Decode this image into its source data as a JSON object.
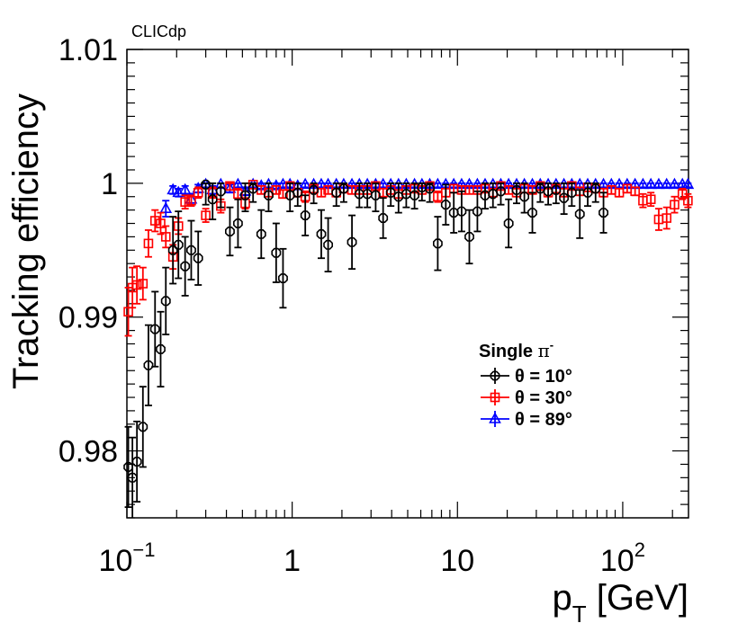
{
  "label": "CLICdp",
  "chart_data": {
    "type": "scatter",
    "xlabel_main": "p",
    "xlabel_sub": "T",
    "xlabel_unit": " [GeV]",
    "ylabel": "Tracking efficiency",
    "x_scale": "log",
    "xlim": [
      0.1,
      250
    ],
    "ylim": [
      0.975,
      1.01
    ],
    "x_ticks": [
      {
        "value": 0.1,
        "base": "10",
        "exp": "−1"
      },
      {
        "value": 1,
        "base": "1",
        "exp": ""
      },
      {
        "value": 10,
        "base": "10",
        "exp": ""
      },
      {
        "value": 100,
        "base": "10",
        "exp": "2"
      }
    ],
    "y_ticks": [
      {
        "value": 0.98,
        "label": "0.98"
      },
      {
        "value": 0.99,
        "label": "0.99"
      },
      {
        "value": 1.0,
        "label": "1"
      },
      {
        "value": 1.01,
        "label": "1.01"
      }
    ],
    "legend": {
      "title_text": "Single ",
      "title_symbol": "π",
      "title_sup": "-",
      "position": "center-right"
    },
    "series": [
      {
        "name": "θ = 10°",
        "color": "#000000",
        "marker": "circle",
        "points": [
          [
            0.102,
            0.9788,
            0.003
          ],
          [
            0.108,
            0.978,
            0.003
          ],
          [
            0.115,
            0.9792,
            0.003
          ],
          [
            0.125,
            0.9818,
            0.003
          ],
          [
            0.135,
            0.9864,
            0.003
          ],
          [
            0.148,
            0.9891,
            0.0028
          ],
          [
            0.16,
            0.9876,
            0.0028
          ],
          [
            0.172,
            0.9912,
            0.0025
          ],
          [
            0.19,
            0.995,
            0.0025
          ],
          [
            0.205,
            0.9954,
            0.0025
          ],
          [
            0.225,
            0.9938,
            0.0022
          ],
          [
            0.245,
            0.995,
            0.0022
          ],
          [
            0.27,
            0.9944,
            0.002
          ],
          [
            0.3,
            0.9999,
            0.0015
          ],
          [
            0.33,
            0.9988,
            0.0015
          ],
          [
            0.37,
            0.9994,
            0.0012
          ],
          [
            0.42,
            0.9964,
            0.0018
          ],
          [
            0.47,
            0.997,
            0.0018
          ],
          [
            0.52,
            0.9991,
            0.0012
          ],
          [
            0.58,
            0.9996,
            0.001
          ],
          [
            0.65,
            0.9962,
            0.0018
          ],
          [
            0.72,
            0.9991,
            0.0012
          ],
          [
            0.8,
            0.9948,
            0.0022
          ],
          [
            0.88,
            0.9929,
            0.0022
          ],
          [
            0.97,
            0.9991,
            0.0012
          ],
          [
            1.08,
            0.9993,
            0.001
          ],
          [
            1.2,
            0.9976,
            0.0015
          ],
          [
            1.35,
            0.9995,
            0.001
          ],
          [
            1.5,
            0.9962,
            0.0018
          ],
          [
            1.65,
            0.9954,
            0.002
          ],
          [
            1.85,
            0.9993,
            0.001
          ],
          [
            2.05,
            0.9996,
            0.001
          ],
          [
            2.3,
            0.9956,
            0.002
          ],
          [
            2.55,
            0.9992,
            0.001
          ],
          [
            2.85,
            0.9992,
            0.001
          ],
          [
            3.2,
            0.9991,
            0.0012
          ],
          [
            3.55,
            0.9974,
            0.0015
          ],
          [
            3.95,
            0.9993,
            0.001
          ],
          [
            4.4,
            0.999,
            0.0012
          ],
          [
            4.9,
            0.9992,
            0.001
          ],
          [
            5.5,
            0.9991,
            0.001
          ],
          [
            6.1,
            0.9997,
            0.001
          ],
          [
            6.8,
            0.9996,
            0.001
          ],
          [
            7.6,
            0.9955,
            0.002
          ],
          [
            8.5,
            0.9984,
            0.0015
          ],
          [
            9.5,
            0.9978,
            0.0015
          ],
          [
            10.6,
            0.9979,
            0.0015
          ],
          [
            11.8,
            0.996,
            0.002
          ],
          [
            13.2,
            0.9979,
            0.0015
          ],
          [
            14.7,
            0.9991,
            0.001
          ],
          [
            16.4,
            0.9992,
            0.001
          ],
          [
            18.3,
            0.9994,
            0.001
          ],
          [
            20.4,
            0.997,
            0.0018
          ],
          [
            22.8,
            0.9995,
            0.001
          ],
          [
            25.4,
            0.999,
            0.0012
          ],
          [
            28.4,
            0.9978,
            0.0015
          ],
          [
            31.7,
            0.9996,
            0.001
          ],
          [
            35.4,
            0.9994,
            0.001
          ],
          [
            39.5,
            0.9995,
            0.001
          ],
          [
            44.1,
            0.9989,
            0.0012
          ],
          [
            49.2,
            0.9993,
            0.001
          ],
          [
            55,
            0.9977,
            0.0018
          ],
          [
            61.4,
            0.9993,
            0.001
          ],
          [
            68.5,
            0.9996,
            0.001
          ],
          [
            76.5,
            0.9978,
            0.0015
          ]
        ]
      },
      {
        "name": "θ = 30°",
        "color": "#ff0000",
        "marker": "square",
        "points": [
          [
            0.102,
            0.9904,
            0.0018
          ],
          [
            0.108,
            0.9922,
            0.0015
          ],
          [
            0.115,
            0.9924,
            0.0014
          ],
          [
            0.125,
            0.9925,
            0.0012
          ],
          [
            0.135,
            0.9955,
            0.001
          ],
          [
            0.148,
            0.9972,
            0.0008
          ],
          [
            0.16,
            0.997,
            0.0008
          ],
          [
            0.172,
            0.996,
            0.0008
          ],
          [
            0.19,
            0.9945,
            0.0009
          ],
          [
            0.205,
            0.9968,
            0.0006
          ],
          [
            0.225,
            0.9986,
            0.0005
          ],
          [
            0.245,
            0.9987,
            0.0004
          ],
          [
            0.27,
            0.9993,
            0.0004
          ],
          [
            0.3,
            0.9976,
            0.0005
          ],
          [
            0.33,
            0.9993,
            0.0004
          ],
          [
            0.37,
            0.9983,
            0.0005
          ],
          [
            0.42,
            0.9998,
            0.0003
          ],
          [
            0.47,
            0.9992,
            0.0004
          ],
          [
            0.52,
            0.9985,
            0.0004
          ],
          [
            0.58,
            0.9999,
            0.0003
          ],
          [
            0.65,
            0.9995,
            0.0003
          ],
          [
            0.72,
            0.9993,
            0.0003
          ],
          [
            0.8,
            0.9995,
            0.0003
          ],
          [
            0.88,
            0.9992,
            0.0003
          ],
          [
            0.97,
            0.9998,
            0.0003
          ],
          [
            1.08,
            0.9993,
            0.0003
          ],
          [
            1.2,
            0.999,
            0.0004
          ],
          [
            1.35,
            0.9996,
            0.0003
          ],
          [
            1.5,
            0.9993,
            0.0003
          ],
          [
            1.65,
            0.9995,
            0.0003
          ],
          [
            1.85,
            0.9993,
            0.0003
          ],
          [
            2.05,
            0.9996,
            0.0003
          ],
          [
            2.3,
            0.9995,
            0.0003
          ],
          [
            2.55,
            0.9995,
            0.0003
          ],
          [
            2.85,
            0.9995,
            0.0003
          ],
          [
            3.2,
            0.9998,
            0.0003
          ],
          [
            3.55,
            0.9993,
            0.0003
          ],
          [
            3.95,
            0.9995,
            0.0003
          ],
          [
            4.4,
            0.9992,
            0.0003
          ],
          [
            4.9,
            0.9995,
            0.0003
          ],
          [
            5.5,
            0.9996,
            0.0003
          ],
          [
            6.1,
            0.9995,
            0.0003
          ],
          [
            6.8,
            0.9998,
            0.0003
          ],
          [
            7.6,
            0.999,
            0.0004
          ],
          [
            8.5,
            0.9993,
            0.0003
          ],
          [
            9.5,
            0.9996,
            0.0003
          ],
          [
            10.6,
            0.9995,
            0.0003
          ],
          [
            11.8,
            0.9995,
            0.0003
          ],
          [
            13.2,
            0.9995,
            0.0003
          ],
          [
            14.7,
            0.9996,
            0.0003
          ],
          [
            16.4,
            0.9993,
            0.0003
          ],
          [
            18.3,
            0.9998,
            0.0003
          ],
          [
            20.4,
            0.9995,
            0.0003
          ],
          [
            22.8,
            0.9993,
            0.0003
          ],
          [
            25.4,
            0.9996,
            0.0003
          ],
          [
            28.4,
            0.9995,
            0.0003
          ],
          [
            31.7,
            0.9998,
            0.0003
          ],
          [
            35.4,
            0.9993,
            0.0003
          ],
          [
            39.5,
            0.9996,
            0.0003
          ],
          [
            44.1,
            0.9993,
            0.0003
          ],
          [
            49.2,
            0.9998,
            0.0003
          ],
          [
            55,
            0.9994,
            0.0003
          ],
          [
            61.4,
            0.9997,
            0.0003
          ],
          [
            68.5,
            0.9996,
            0.0003
          ],
          [
            76.5,
            0.9993,
            0.0003
          ],
          [
            85.4,
            0.9995,
            0.0003
          ],
          [
            95.3,
            0.9993,
            0.0003
          ],
          [
            106.4,
            0.9996,
            0.0003
          ],
          [
            118.8,
            0.9994,
            0.0003
          ],
          [
            132.6,
            0.9987,
            0.0005
          ],
          [
            148,
            0.9988,
            0.0005
          ],
          [
            165.2,
            0.9973,
            0.0008
          ],
          [
            184.4,
            0.9974,
            0.0008
          ],
          [
            205.8,
            0.9984,
            0.0006
          ],
          [
            229.7,
            0.9992,
            0.0004
          ],
          [
            248,
            0.9987,
            0.0005
          ]
        ]
      },
      {
        "name": "θ = 89°",
        "color": "#0000ff",
        "marker": "triangle",
        "points": [
          [
            0.172,
            0.9981,
            0.0006
          ],
          [
            0.19,
            0.9995,
            0.0003
          ],
          [
            0.205,
            0.9993,
            0.0003
          ],
          [
            0.225,
            0.9995,
            0.0003
          ],
          [
            0.245,
            0.9988,
            0.0004
          ],
          [
            0.27,
            0.9996,
            0.0003
          ],
          [
            0.3,
            0.9999,
            0.0002
          ],
          [
            0.33,
            0.9995,
            0.0003
          ],
          [
            0.37,
            0.9999,
            0.0002
          ],
          [
            0.42,
            0.9996,
            0.0003
          ],
          [
            0.47,
            0.9999,
            0.0002
          ],
          [
            0.52,
            0.9994,
            0.0003
          ],
          [
            0.58,
            0.9999,
            0.0002
          ],
          [
            0.65,
            0.9998,
            0.0002
          ],
          [
            0.72,
            0.9999,
            0.0002
          ],
          [
            0.8,
            0.9998,
            0.0002
          ],
          [
            0.88,
            0.9999,
            0.0002
          ],
          [
            0.97,
            0.9999,
            0.0002
          ],
          [
            1.08,
            0.9998,
            0.0002
          ],
          [
            1.2,
            0.9999,
            0.0002
          ],
          [
            1.35,
            0.9999,
            0.0002
          ],
          [
            1.5,
            0.9999,
            0.0002
          ],
          [
            1.65,
            0.9999,
            0.0002
          ],
          [
            1.85,
            0.9999,
            0.0002
          ],
          [
            2.05,
            0.9999,
            0.0002
          ],
          [
            2.3,
            0.9999,
            0.0002
          ],
          [
            2.55,
            0.9999,
            0.0002
          ],
          [
            2.85,
            0.9999,
            0.0002
          ],
          [
            3.2,
            0.9999,
            0.0002
          ],
          [
            3.55,
            0.9999,
            0.0002
          ],
          [
            3.95,
            0.9999,
            0.0002
          ],
          [
            4.4,
            0.9999,
            0.0002
          ],
          [
            4.9,
            0.9999,
            0.0002
          ],
          [
            5.5,
            0.9999,
            0.0002
          ],
          [
            6.1,
            0.9999,
            0.0002
          ],
          [
            6.8,
            0.9999,
            0.0002
          ],
          [
            7.6,
            0.9999,
            0.0002
          ],
          [
            8.5,
            0.9999,
            0.0002
          ],
          [
            9.5,
            0.9999,
            0.0002
          ],
          [
            10.6,
            0.9999,
            0.0002
          ],
          [
            11.8,
            0.9999,
            0.0002
          ],
          [
            13.2,
            0.9999,
            0.0002
          ],
          [
            14.7,
            0.9999,
            0.0002
          ],
          [
            16.4,
            0.9999,
            0.0002
          ],
          [
            18.3,
            0.9999,
            0.0002
          ],
          [
            20.4,
            0.9999,
            0.0002
          ],
          [
            22.8,
            0.9999,
            0.0002
          ],
          [
            25.4,
            0.9999,
            0.0002
          ],
          [
            28.4,
            0.9999,
            0.0002
          ],
          [
            31.7,
            0.9999,
            0.0002
          ],
          [
            35.4,
            0.9999,
            0.0002
          ],
          [
            39.5,
            0.9999,
            0.0002
          ],
          [
            44.1,
            0.9999,
            0.0002
          ],
          [
            49.2,
            0.9999,
            0.0002
          ],
          [
            55,
            0.9999,
            0.0002
          ],
          [
            61.4,
            0.9999,
            0.0002
          ],
          [
            68.5,
            0.9999,
            0.0002
          ],
          [
            76.5,
            0.9999,
            0.0002
          ],
          [
            85.4,
            0.9999,
            0.0002
          ],
          [
            95.3,
            0.9999,
            0.0002
          ],
          [
            106.4,
            0.9999,
            0.0002
          ],
          [
            118.8,
            0.9999,
            0.0002
          ],
          [
            132.6,
            0.9999,
            0.0002
          ],
          [
            148,
            0.9999,
            0.0002
          ],
          [
            165.2,
            0.9999,
            0.0002
          ],
          [
            184.4,
            0.9999,
            0.0002
          ],
          [
            205.8,
            0.9999,
            0.0002
          ],
          [
            229.7,
            0.9999,
            0.0002
          ],
          [
            248,
            0.9999,
            0.0002
          ]
        ]
      }
    ]
  }
}
